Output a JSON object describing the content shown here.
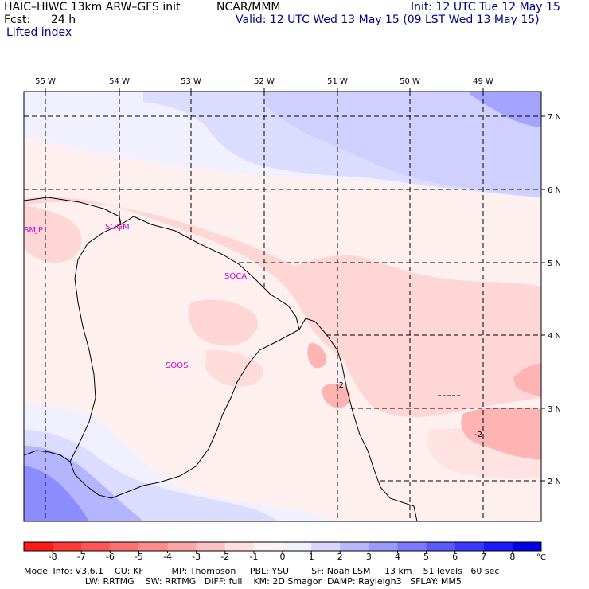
{
  "header": {
    "model": "HAIC–HIWC 13km ARW–GFS init",
    "org": "NCAR/MMM",
    "init": "Init: 12 UTC Tue 12 May 15",
    "fcst_label": "Fcst:",
    "fcst_value": "24 h",
    "valid": "Valid: 12 UTC Wed 13 May 15 (09 LST Wed 13 May 15)",
    "field": "Lifted index"
  },
  "map": {
    "lon_labels": [
      "55 W",
      "54 W",
      "53 W",
      "52 W",
      "51 W",
      "50 W",
      "49 W"
    ],
    "lat_labels": [
      "7 N",
      "6 N",
      "5 N",
      "4 N",
      "3 N",
      "2 N"
    ],
    "stations": [
      "SMJP",
      "SOGM",
      "SOCA",
      "SOOS"
    ],
    "contour_labels": [
      "-2",
      "-2"
    ]
  },
  "colorbar": {
    "labels": [
      "-8",
      "-7",
      "-6",
      "-5",
      "-4",
      "-3",
      "-2",
      "-1",
      "0",
      "1",
      "2",
      "3",
      "4",
      "5",
      "6",
      "7",
      "8"
    ],
    "unit": "°C",
    "colors": [
      "#ff1a1a",
      "#ff3838",
      "#ff5555",
      "#ff7070",
      "#ff8c8c",
      "#ffa6a6",
      "#ffc2c2",
      "#ffe0e0",
      "#fff2f2",
      "#f0f0ff",
      "#d8d8ff",
      "#b8b8ff",
      "#9a9aff",
      "#7a7aff",
      "#5a5aff",
      "#3a3aff",
      "#1a1aff",
      "#0000e6"
    ]
  },
  "footer": {
    "line1": "Model Info: V3.6.1    CU: KF          MP: Thompson     PBL: YSU        SF: Noah LSM     13 km    51 levels   60 sec",
    "line2": "                      LW: RRTMG    SW: RRTMG   DIFF: full    KM: 2D Smagor  DAMP: Rayleigh3   SFLAY: MM5"
  }
}
